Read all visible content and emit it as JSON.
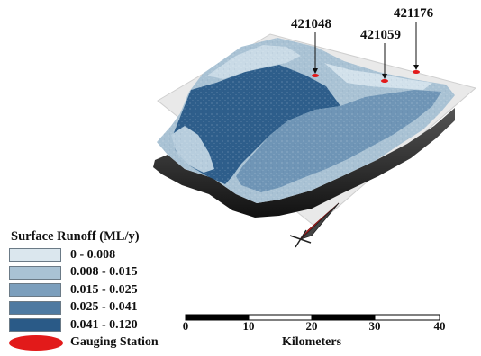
{
  "stations": [
    {
      "id": "421048"
    },
    {
      "id": "421059"
    },
    {
      "id": "421176"
    }
  ],
  "legend": {
    "title": "Surface Runoff (ML/y)",
    "classes": [
      {
        "label": "0 - 0.008",
        "color": "#dbe7ee"
      },
      {
        "label": "0.008 - 0.015",
        "color": "#a9c2d4"
      },
      {
        "label": "0.015 - 0.025",
        "color": "#7c9fbd"
      },
      {
        "label": "0.025 - 0.041",
        "color": "#4f7aa1"
      },
      {
        "label": "0.041 - 0.120",
        "color": "#2a5a87"
      }
    ],
    "station_label": "Gauging Station",
    "station_color": "#e21a1a"
  },
  "scalebar": {
    "ticks": [
      "0",
      "10",
      "20",
      "30",
      "40"
    ],
    "unit": "Kilometers"
  },
  "north_arrow": {
    "icon": "north-arrow-icon"
  }
}
